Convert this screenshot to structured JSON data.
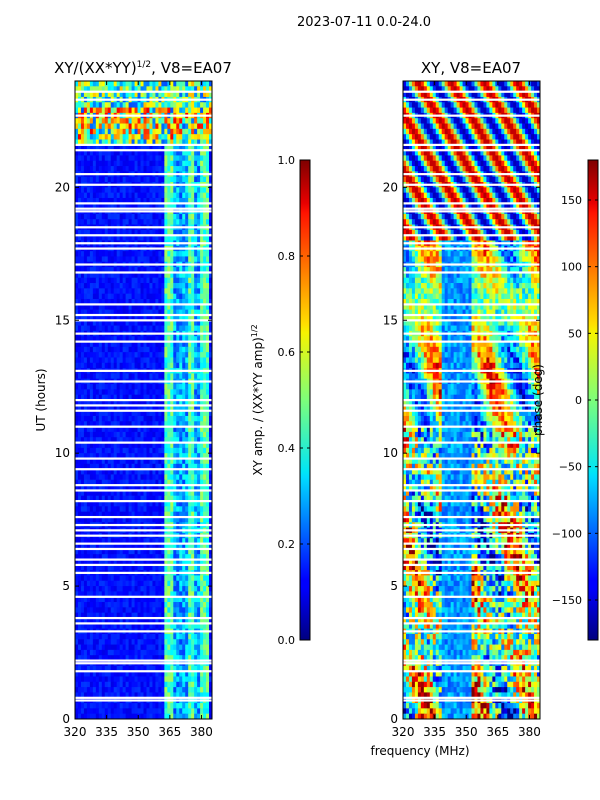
{
  "suptitle": "2023-07-11 0.0-24.0",
  "chart_data": [
    {
      "type": "heatmap",
      "title_main": "XY/(XX*YY)",
      "title_sup": "1/2",
      "title_tail": ", V8=EA07",
      "xlabel": "",
      "ylabel": "UT (hours)",
      "xlim": [
        320,
        385
      ],
      "ylim": [
        0,
        24
      ],
      "xticks": [
        320,
        335,
        350,
        365,
        380
      ],
      "yticks": [
        0,
        5,
        10,
        15,
        20
      ],
      "grid": false,
      "colorbar": {
        "label_main": "XY amp. / (XX*YY amp)",
        "label_sup": "1/2",
        "range": [
          0.0,
          1.0
        ],
        "ticks": [
          "0.0",
          "0.2",
          "0.4",
          "0.6",
          "0.8",
          "1.0"
        ],
        "tick_values": [
          0.0,
          0.2,
          0.4,
          0.6,
          0.8,
          1.0
        ],
        "colormap": "jet"
      },
      "flagged_utc_hours": [
        0.7,
        0.8,
        1.8,
        2.1,
        2.2,
        3.3,
        3.6,
        3.8,
        4.6,
        5.5,
        5.8,
        6.0,
        6.4,
        6.6,
        6.9,
        7.1,
        7.3,
        7.6,
        8.2,
        8.6,
        8.8,
        9.4,
        9.8,
        10.4,
        11.0,
        11.6,
        11.8,
        12.0,
        12.7,
        13.1,
        14.2,
        14.5,
        15.0,
        15.2,
        15.6,
        16.8,
        17.1,
        17.7,
        17.9,
        18.2,
        18.5,
        19.1,
        19.2,
        19.4,
        20.1,
        20.5,
        21.4,
        21.6,
        22.7,
        23.3,
        23.6
      ]
    },
    {
      "type": "heatmap",
      "title_main": "XY, V8=EA07",
      "xlabel": "frequency (MHz)",
      "ylabel": "",
      "xlim": [
        320,
        385
      ],
      "ylim": [
        0,
        24
      ],
      "xticks": [
        320,
        335,
        350,
        365,
        380
      ],
      "yticks": [
        0,
        5,
        10,
        15,
        20
      ],
      "grid": false,
      "colorbar": {
        "label_main": "phase (deg)",
        "range": [
          -180,
          180
        ],
        "ticks": [
          "−150",
          "−100",
          "−50",
          "0",
          "50",
          "100",
          "150"
        ],
        "tick_values": [
          -150,
          -100,
          -50,
          0,
          50,
          100,
          150
        ],
        "colormap": "jet"
      },
      "flagged_utc_hours": [
        0.7,
        0.8,
        1.8,
        2.1,
        2.2,
        3.3,
        3.6,
        3.8,
        4.6,
        5.5,
        5.8,
        6.0,
        6.4,
        6.6,
        6.9,
        7.1,
        7.3,
        7.6,
        8.2,
        8.6,
        8.8,
        9.4,
        9.8,
        10.4,
        11.0,
        11.6,
        11.8,
        12.0,
        12.7,
        13.1,
        14.2,
        14.5,
        15.0,
        15.2,
        15.6,
        16.8,
        17.1,
        17.7,
        17.9,
        18.2,
        18.5,
        19.1,
        19.2,
        19.4,
        20.1,
        20.5,
        21.4,
        21.6,
        22.7,
        23.3,
        23.6
      ]
    }
  ]
}
